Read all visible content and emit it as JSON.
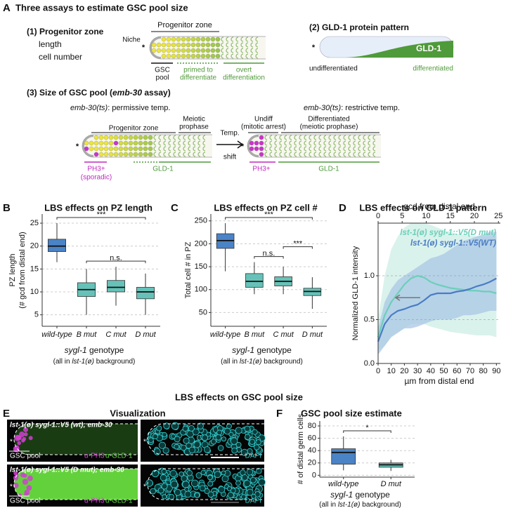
{
  "panel_a": {
    "label": "A",
    "title": "Three assays to estimate GSC pool size",
    "assay1": {
      "title": "(1) Progenitor zone",
      "items": [
        "length",
        "cell number"
      ],
      "zone": "Progenitor zone",
      "niche": "Niche",
      "asterisk": "*",
      "gsc_pool": [
        "GSC",
        "pool"
      ],
      "primed": [
        "primed to",
        "differentiate"
      ],
      "overt": [
        "overt",
        "differentiation"
      ]
    },
    "assay2": {
      "title": "(2) GLD-1 protein pattern",
      "band": "GLD-1",
      "undiff": "undifferentiated",
      "diff": "differentiated",
      "asterisk": "*"
    },
    "assay3": {
      "title": [
        "(3) Size of GSC pool (",
        "emb-30",
        " assay)"
      ],
      "permissive": [
        "emb-30(ts)",
        ": permissive temp."
      ],
      "restrictive": [
        "emb-30(ts)",
        ": restrictive temp."
      ],
      "zone": "Progenitor zone",
      "meiotic": [
        "Meiotic",
        "prophase"
      ],
      "ph3_left": [
        "PH3+",
        "(sporadic)"
      ],
      "gld1_left": "GLD-1",
      "shift": [
        "Temp.",
        "shift"
      ],
      "undiff": [
        "Undiff",
        "(mitotic arrest)"
      ],
      "differentiated": [
        "Differentiated",
        "(meiotic prophase)"
      ],
      "ph3_right": "PH3+",
      "gld1_right": "GLD-1",
      "asterisks": [
        "*",
        "*"
      ]
    }
  },
  "panel_e": {
    "label": "E",
    "section_title": "LBS effects on GSC pool size",
    "title": "Visualization",
    "rows": [
      {
        "genotype": "lst-1(ø) sygl-1::V5 (wt); emb-30",
        "gsc_pool": "GSC pool",
        "ph3": "α-PH3",
        "gld1": "α-GLD-1",
        "dapi": "DAPI",
        "asterisks": [
          "*",
          "*"
        ]
      },
      {
        "genotype": "lst-1(ø) sygl-1::V5 (D mut); emb-30",
        "gsc_pool": "GSC pool",
        "ph3": "α-PH3",
        "gld1": "α-GLD-1",
        "dapi": "DAPI",
        "asterisks": [
          "*",
          "*"
        ]
      }
    ]
  },
  "chart_data": [
    {
      "type": "box",
      "panel": "B",
      "title": "LBS effects on PZ length",
      "ylabel": [
        "PZ length",
        "(# gcd  from distal end)"
      ],
      "xlabel": [
        "sygl-1",
        " genotype"
      ],
      "xnote": [
        "(all in ",
        "lst-1(ø)",
        " background)"
      ],
      "categories": [
        "wild-type",
        "B mut",
        "C mut",
        "D mut"
      ],
      "colors": [
        "#4a83c6",
        "#66c2b8",
        "#66c2b8",
        "#66c2b8"
      ],
      "boxes": [
        {
          "min": 16.5,
          "q1": 18.8,
          "median": 20,
          "q3": 21.5,
          "max": 25
        },
        {
          "min": 5,
          "q1": 9,
          "median": 10.5,
          "q3": 12,
          "max": 15
        },
        {
          "min": 7,
          "q1": 10,
          "median": 11,
          "q3": 12.5,
          "max": 15.5
        },
        {
          "min": 5,
          "q1": 8.5,
          "median": 10,
          "q3": 11,
          "max": 14
        }
      ],
      "ylim": [
        2.5,
        27
      ],
      "yticks": [
        5,
        10,
        15,
        20,
        25
      ],
      "grid": true,
      "annotations": [
        {
          "text": "***",
          "between": [
            0,
            3
          ]
        },
        {
          "text": "n.s.",
          "between": [
            1,
            3
          ]
        }
      ]
    },
    {
      "type": "box",
      "panel": "C",
      "title": "LBS effects on PZ cell #",
      "ylabel": [
        "Total cell # in PZ"
      ],
      "xlabel": [
        "sygl-1",
        " genotype"
      ],
      "xnote": [
        "(all in ",
        "lst-1(ø)",
        " background)"
      ],
      "categories": [
        "wild-type",
        "B mut",
        "C mut",
        "D mut"
      ],
      "colors": [
        "#4a83c6",
        "#66c2b8",
        "#66c2b8",
        "#66c2b8"
      ],
      "boxes": [
        {
          "min": 140,
          "q1": 190,
          "median": 207,
          "q3": 222,
          "max": 245
        },
        {
          "min": 90,
          "q1": 105,
          "median": 118,
          "q3": 135,
          "max": 160
        },
        {
          "min": 90,
          "q1": 108,
          "median": 118,
          "q3": 128,
          "max": 150
        },
        {
          "min": 58,
          "q1": 87,
          "median": 96,
          "q3": 103,
          "max": 127
        }
      ],
      "ylim": [
        20,
        265
      ],
      "yticks": [
        50,
        100,
        150,
        200,
        250
      ],
      "grid": true,
      "annotations": [
        {
          "text": "***",
          "between": [
            0,
            3
          ]
        },
        {
          "text": "n.s.",
          "between": [
            1,
            2
          ]
        },
        {
          "text": "***",
          "between": [
            2,
            3
          ]
        }
      ]
    },
    {
      "type": "line",
      "panel": "D",
      "title": "LBS effects on GLD-1 pattern",
      "xlabel": "µm from distal end",
      "x2label": "gcd from distal end",
      "ylabel": "Normalized GLD-1 intensity",
      "x": [
        0,
        5,
        10,
        15,
        20,
        25,
        30,
        35,
        40,
        45,
        50,
        55,
        60,
        65,
        70,
        75,
        80,
        85,
        90
      ],
      "xlim": [
        0,
        93
      ],
      "xticks": [
        0,
        10,
        20,
        30,
        40,
        50,
        60,
        70,
        80,
        90
      ],
      "x2lim": [
        0,
        25.4
      ],
      "x2ticks": [
        0,
        5,
        10,
        15,
        20,
        25
      ],
      "ylim": [
        0,
        1.6
      ],
      "yticks": [
        {
          "value": 0,
          "label": "0.0"
        },
        0.5,
        {
          "value": 1,
          "label": "1.0"
        }
      ],
      "grid": true,
      "legend": "top-right",
      "series": [
        {
          "name": "lst-1(ø) sygl-1::V5(D mut)",
          "color": "#6ccfb9",
          "band_color": "#cdeee6",
          "values": [
            0.3,
            0.55,
            0.7,
            0.8,
            0.9,
            0.97,
            1.0,
            0.98,
            0.93,
            0.9,
            0.88,
            0.86,
            0.85,
            0.84,
            0.83,
            0.83,
            0.82,
            0.82,
            0.8
          ],
          "upper": [
            0.5,
            1.0,
            1.3,
            1.45,
            1.55,
            1.6,
            1.6,
            1.6,
            1.58,
            1.55,
            1.52,
            1.5,
            1.48,
            1.47,
            1.46,
            1.45,
            1.45,
            1.45,
            1.45
          ],
          "lower": [
            0.15,
            0.2,
            0.3,
            0.35,
            0.4,
            0.45,
            0.45,
            0.45,
            0.42,
            0.4,
            0.38,
            0.36,
            0.35,
            0.34,
            0.33,
            0.32,
            0.32,
            0.32,
            0.3
          ]
        },
        {
          "name": "lst-1(ø) sygl-1::V5(WT)",
          "color": "#4a7cc4",
          "band_color": "#a9c7e6",
          "values": [
            0.25,
            0.45,
            0.55,
            0.6,
            0.62,
            0.65,
            0.67,
            0.72,
            0.78,
            0.8,
            0.8,
            0.8,
            0.82,
            0.83,
            0.85,
            0.88,
            0.9,
            0.93,
            0.97
          ],
          "upper": [
            0.4,
            0.7,
            0.85,
            0.95,
            1.0,
            1.05,
            1.1,
            1.15,
            1.2,
            1.22,
            1.25,
            1.3,
            1.35,
            1.4,
            1.42,
            1.45,
            1.47,
            1.5,
            1.5
          ],
          "lower": [
            0.1,
            0.2,
            0.3,
            0.35,
            0.4,
            0.4,
            0.42,
            0.45,
            0.48,
            0.5,
            0.5,
            0.5,
            0.52,
            0.55,
            0.55,
            0.56,
            0.58,
            0.6,
            0.6
          ]
        }
      ]
    },
    {
      "type": "box",
      "panel": "F",
      "title": "GSC pool size estimate",
      "ylabel": [
        "# of distal germ cells"
      ],
      "xlabel": [
        "sygl-1",
        " genotype"
      ],
      "xnote": [
        "(all in ",
        "lst-1(ø)",
        " background)"
      ],
      "categories": [
        "wild-type",
        "D mut"
      ],
      "colors": [
        "#4a83c6",
        "#66c2b8"
      ],
      "boxes": [
        {
          "min": 8,
          "q1": 18,
          "median": 37,
          "q3": 43,
          "max": 63
        },
        {
          "min": 7,
          "q1": 13,
          "median": 17,
          "q3": 20,
          "max": 25
        }
      ],
      "ylim": [
        -3,
        88
      ],
      "yticks": [
        0,
        20,
        40,
        60,
        80
      ],
      "grid": true,
      "annotations": [
        {
          "text": "*",
          "between": [
            0,
            1
          ]
        }
      ]
    }
  ]
}
